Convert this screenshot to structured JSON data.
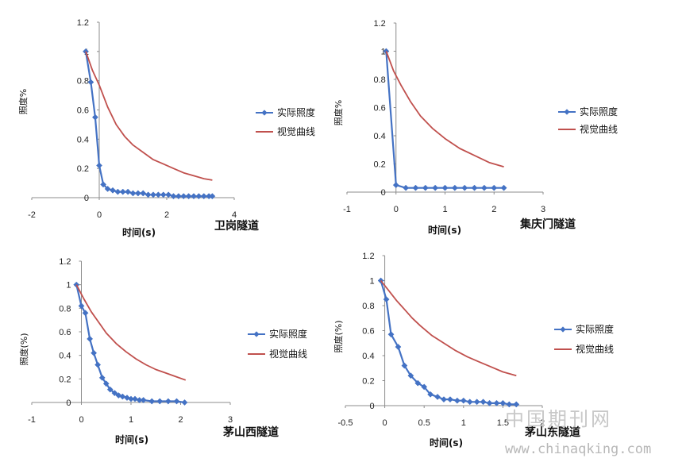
{
  "chart_data": [
    {
      "type": "line",
      "tunnel_label": "卫岗隧道",
      "xlabel": "时间(s)",
      "ylabel": "照度%",
      "xlim": [
        -2,
        4
      ],
      "ylim": [
        0,
        1.2
      ],
      "xticks": [
        -2,
        0,
        2,
        4
      ],
      "xtick_labels": [
        "-2",
        "0",
        "2",
        "4"
      ],
      "yticks": [
        0,
        0.2,
        0.4,
        0.6,
        0.8,
        1,
        1.2
      ],
      "ytick_labels": [
        "0",
        "0.2",
        "0.4",
        "0.6",
        "0.8",
        "1",
        "1.2"
      ],
      "legend_position": "right",
      "series": [
        {
          "name": "实际照度",
          "color": "#4472C4",
          "marker": "diamond",
          "x": [
            -0.4,
            -0.25,
            -0.12,
            0.0,
            0.12,
            0.25,
            0.4,
            0.55,
            0.7,
            0.85,
            1.0,
            1.15,
            1.3,
            1.45,
            1.6,
            1.75,
            1.9,
            2.05,
            2.2,
            2.35,
            2.5,
            2.65,
            2.8,
            2.95,
            3.1,
            3.25,
            3.35
          ],
          "y": [
            1.0,
            0.79,
            0.55,
            0.22,
            0.09,
            0.06,
            0.05,
            0.04,
            0.04,
            0.04,
            0.03,
            0.03,
            0.03,
            0.02,
            0.02,
            0.02,
            0.02,
            0.02,
            0.01,
            0.01,
            0.01,
            0.01,
            0.01,
            0.01,
            0.01,
            0.01,
            0.01
          ]
        },
        {
          "name": "视觉曲线",
          "color": "#C0504D",
          "marker": "none",
          "x": [
            -0.4,
            -0.2,
            0.0,
            0.25,
            0.5,
            0.75,
            1.0,
            1.3,
            1.6,
            1.9,
            2.2,
            2.5,
            2.8,
            3.1,
            3.35
          ],
          "y": [
            1.0,
            0.87,
            0.77,
            0.62,
            0.5,
            0.42,
            0.36,
            0.31,
            0.26,
            0.23,
            0.2,
            0.17,
            0.15,
            0.13,
            0.12
          ]
        }
      ]
    },
    {
      "type": "line",
      "tunnel_label": "集庆门隧道",
      "xlabel": "时间(s)",
      "ylabel": "照度%",
      "xlim": [
        -1,
        3
      ],
      "ylim": [
        0,
        1.2
      ],
      "xticks": [
        -1,
        0,
        1,
        2,
        3
      ],
      "xtick_labels": [
        "-1",
        "0",
        "1",
        "2",
        "3"
      ],
      "yticks": [
        0,
        0.2,
        0.4,
        0.6,
        0.8,
        1,
        1.2
      ],
      "ytick_labels": [
        "0",
        "0.2",
        "0.4",
        "0.6",
        "0.8",
        "1",
        "1.2"
      ],
      "legend_position": "right",
      "series": [
        {
          "name": "实际照度",
          "color": "#4472C4",
          "marker": "diamond",
          "x": [
            -0.2,
            0.0,
            0.2,
            0.4,
            0.6,
            0.8,
            1.0,
            1.2,
            1.4,
            1.6,
            1.8,
            2.0,
            2.2
          ],
          "y": [
            1.0,
            0.05,
            0.03,
            0.03,
            0.03,
            0.03,
            0.03,
            0.03,
            0.03,
            0.03,
            0.03,
            0.03,
            0.03
          ]
        },
        {
          "name": "视觉曲线",
          "color": "#C0504D",
          "marker": "none",
          "x": [
            -0.2,
            -0.05,
            0.1,
            0.3,
            0.5,
            0.75,
            1.0,
            1.3,
            1.6,
            1.9,
            2.2
          ],
          "y": [
            1.0,
            0.86,
            0.76,
            0.64,
            0.54,
            0.45,
            0.38,
            0.31,
            0.26,
            0.21,
            0.18
          ]
        }
      ]
    },
    {
      "type": "line",
      "tunnel_label": "茅山西隧道",
      "xlabel": "时间(s)",
      "ylabel": "照度(%)",
      "xlim": [
        -1,
        3
      ],
      "ylim": [
        0,
        1.2
      ],
      "xticks": [
        -1,
        0,
        1,
        2,
        3
      ],
      "xtick_labels": [
        "-1",
        "0",
        "1",
        "2",
        "3"
      ],
      "yticks": [
        0,
        0.2,
        0.4,
        0.6,
        0.8,
        1,
        1.2
      ],
      "ytick_labels": [
        "0",
        "0.2",
        "0.4",
        "0.6",
        "0.8",
        "1",
        "1.2"
      ],
      "legend_position": "right",
      "series": [
        {
          "name": "实际照度",
          "color": "#4472C4",
          "marker": "diamond",
          "x": [
            -0.1,
            0.0,
            0.08,
            0.17,
            0.25,
            0.33,
            0.42,
            0.5,
            0.58,
            0.67,
            0.75,
            0.83,
            0.92,
            1.0,
            1.08,
            1.17,
            1.25,
            1.42,
            1.58,
            1.75,
            1.92,
            2.08
          ],
          "y": [
            1.0,
            0.82,
            0.76,
            0.54,
            0.42,
            0.32,
            0.21,
            0.16,
            0.11,
            0.08,
            0.06,
            0.05,
            0.04,
            0.03,
            0.03,
            0.02,
            0.02,
            0.01,
            0.01,
            0.01,
            0.01,
            0.0
          ]
        },
        {
          "name": "视觉曲线",
          "color": "#C0504D",
          "marker": "none",
          "x": [
            -0.1,
            0.05,
            0.2,
            0.35,
            0.5,
            0.7,
            0.9,
            1.1,
            1.3,
            1.5,
            1.7,
            1.9,
            2.1
          ],
          "y": [
            1.0,
            0.88,
            0.77,
            0.68,
            0.59,
            0.5,
            0.43,
            0.37,
            0.32,
            0.28,
            0.25,
            0.22,
            0.19
          ]
        }
      ]
    },
    {
      "type": "line",
      "tunnel_label": "茅山东隧道",
      "xlabel": "时间(s)",
      "ylabel": "照度(%)",
      "xlim": [
        -0.5,
        2
      ],
      "ylim": [
        0,
        1.2
      ],
      "xticks": [
        -0.5,
        0,
        0.5,
        1,
        1.5,
        2
      ],
      "xtick_labels": [
        "-0.5",
        "0",
        "0.5",
        "1",
        "1.5",
        "2"
      ],
      "yticks": [
        0,
        0.2,
        0.4,
        0.6,
        0.8,
        1,
        1.2
      ],
      "ytick_labels": [
        "0",
        "0.2",
        "0.4",
        "0.6",
        "0.8",
        "1",
        "1.2"
      ],
      "legend_position": "right",
      "series": [
        {
          "name": "实际照度",
          "color": "#4472C4",
          "marker": "diamond",
          "x": [
            -0.05,
            0.02,
            0.08,
            0.17,
            0.25,
            0.33,
            0.42,
            0.5,
            0.58,
            0.67,
            0.75,
            0.83,
            0.92,
            1.0,
            1.08,
            1.17,
            1.25,
            1.33,
            1.42,
            1.5,
            1.58,
            1.67
          ],
          "y": [
            1.0,
            0.85,
            0.57,
            0.47,
            0.32,
            0.24,
            0.18,
            0.15,
            0.09,
            0.07,
            0.05,
            0.05,
            0.04,
            0.04,
            0.03,
            0.03,
            0.03,
            0.02,
            0.02,
            0.02,
            0.01,
            0.01
          ]
        },
        {
          "name": "视觉曲线",
          "color": "#C0504D",
          "marker": "none",
          "x": [
            -0.05,
            0.05,
            0.15,
            0.25,
            0.35,
            0.45,
            0.6,
            0.75,
            0.9,
            1.05,
            1.2,
            1.35,
            1.5,
            1.67
          ],
          "y": [
            1.0,
            0.92,
            0.84,
            0.77,
            0.7,
            0.64,
            0.56,
            0.5,
            0.44,
            0.39,
            0.35,
            0.31,
            0.27,
            0.24
          ]
        }
      ]
    }
  ],
  "watermark": {
    "cn": "中国期刊网",
    "url": "www.chinaqking.com"
  }
}
